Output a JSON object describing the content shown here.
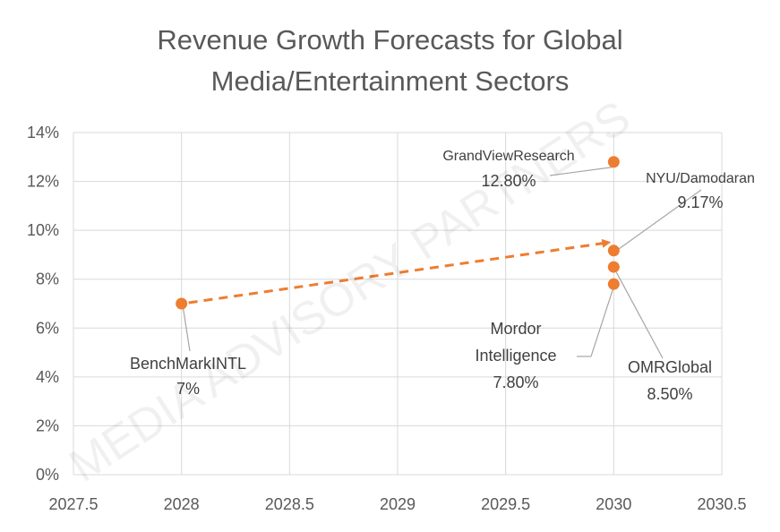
{
  "chart_data": {
    "type": "scatter",
    "title": "Revenue Growth Forecasts for Global Media/Entertainment Sectors",
    "title_lines": [
      "Revenue Growth Forecasts for Global",
      "Media/Entertainment Sectors"
    ],
    "xlim": [
      2027.5,
      2030.5
    ],
    "ylim": [
      0,
      14
    ],
    "x_ticks": [
      2027.5,
      2028,
      2028.5,
      2029,
      2029.5,
      2030,
      2030.5
    ],
    "x_tick_labels": [
      "2027.5",
      "2028",
      "2028.5",
      "2029",
      "2029.5",
      "2030",
      "2030.5"
    ],
    "y_ticks": [
      0,
      2,
      4,
      6,
      8,
      10,
      12,
      14
    ],
    "y_tick_labels": [
      "0%",
      "2%",
      "4%",
      "6%",
      "8%",
      "10%",
      "12%",
      "14%"
    ],
    "grid": true,
    "marker_color": "#ED7D31",
    "points": [
      {
        "name": "BenchMarkINTL",
        "value_label": "7%",
        "x": 2028,
        "y": 7.0
      },
      {
        "name": "GrandViewResearch",
        "value_label": "12.80%",
        "x": 2030,
        "y": 12.8
      },
      {
        "name": "NYU/Damodaran",
        "value_label": "9.17%",
        "x": 2030,
        "y": 9.17
      },
      {
        "name": "OMRGlobal",
        "value_label": "8.50%",
        "x": 2030,
        "y": 8.5
      },
      {
        "name": "Mordor Intelligence",
        "name_lines": [
          "Mordor",
          "Intelligence"
        ],
        "value_label": "7.80%",
        "x": 2030,
        "y": 7.8
      }
    ],
    "trend_arrow": {
      "from": [
        2028,
        7.0
      ],
      "to": [
        2030,
        9.5
      ],
      "style": "dashed",
      "color": "#ED7D31"
    },
    "watermark": "MEDIA ADVISORY PARTNERS"
  }
}
